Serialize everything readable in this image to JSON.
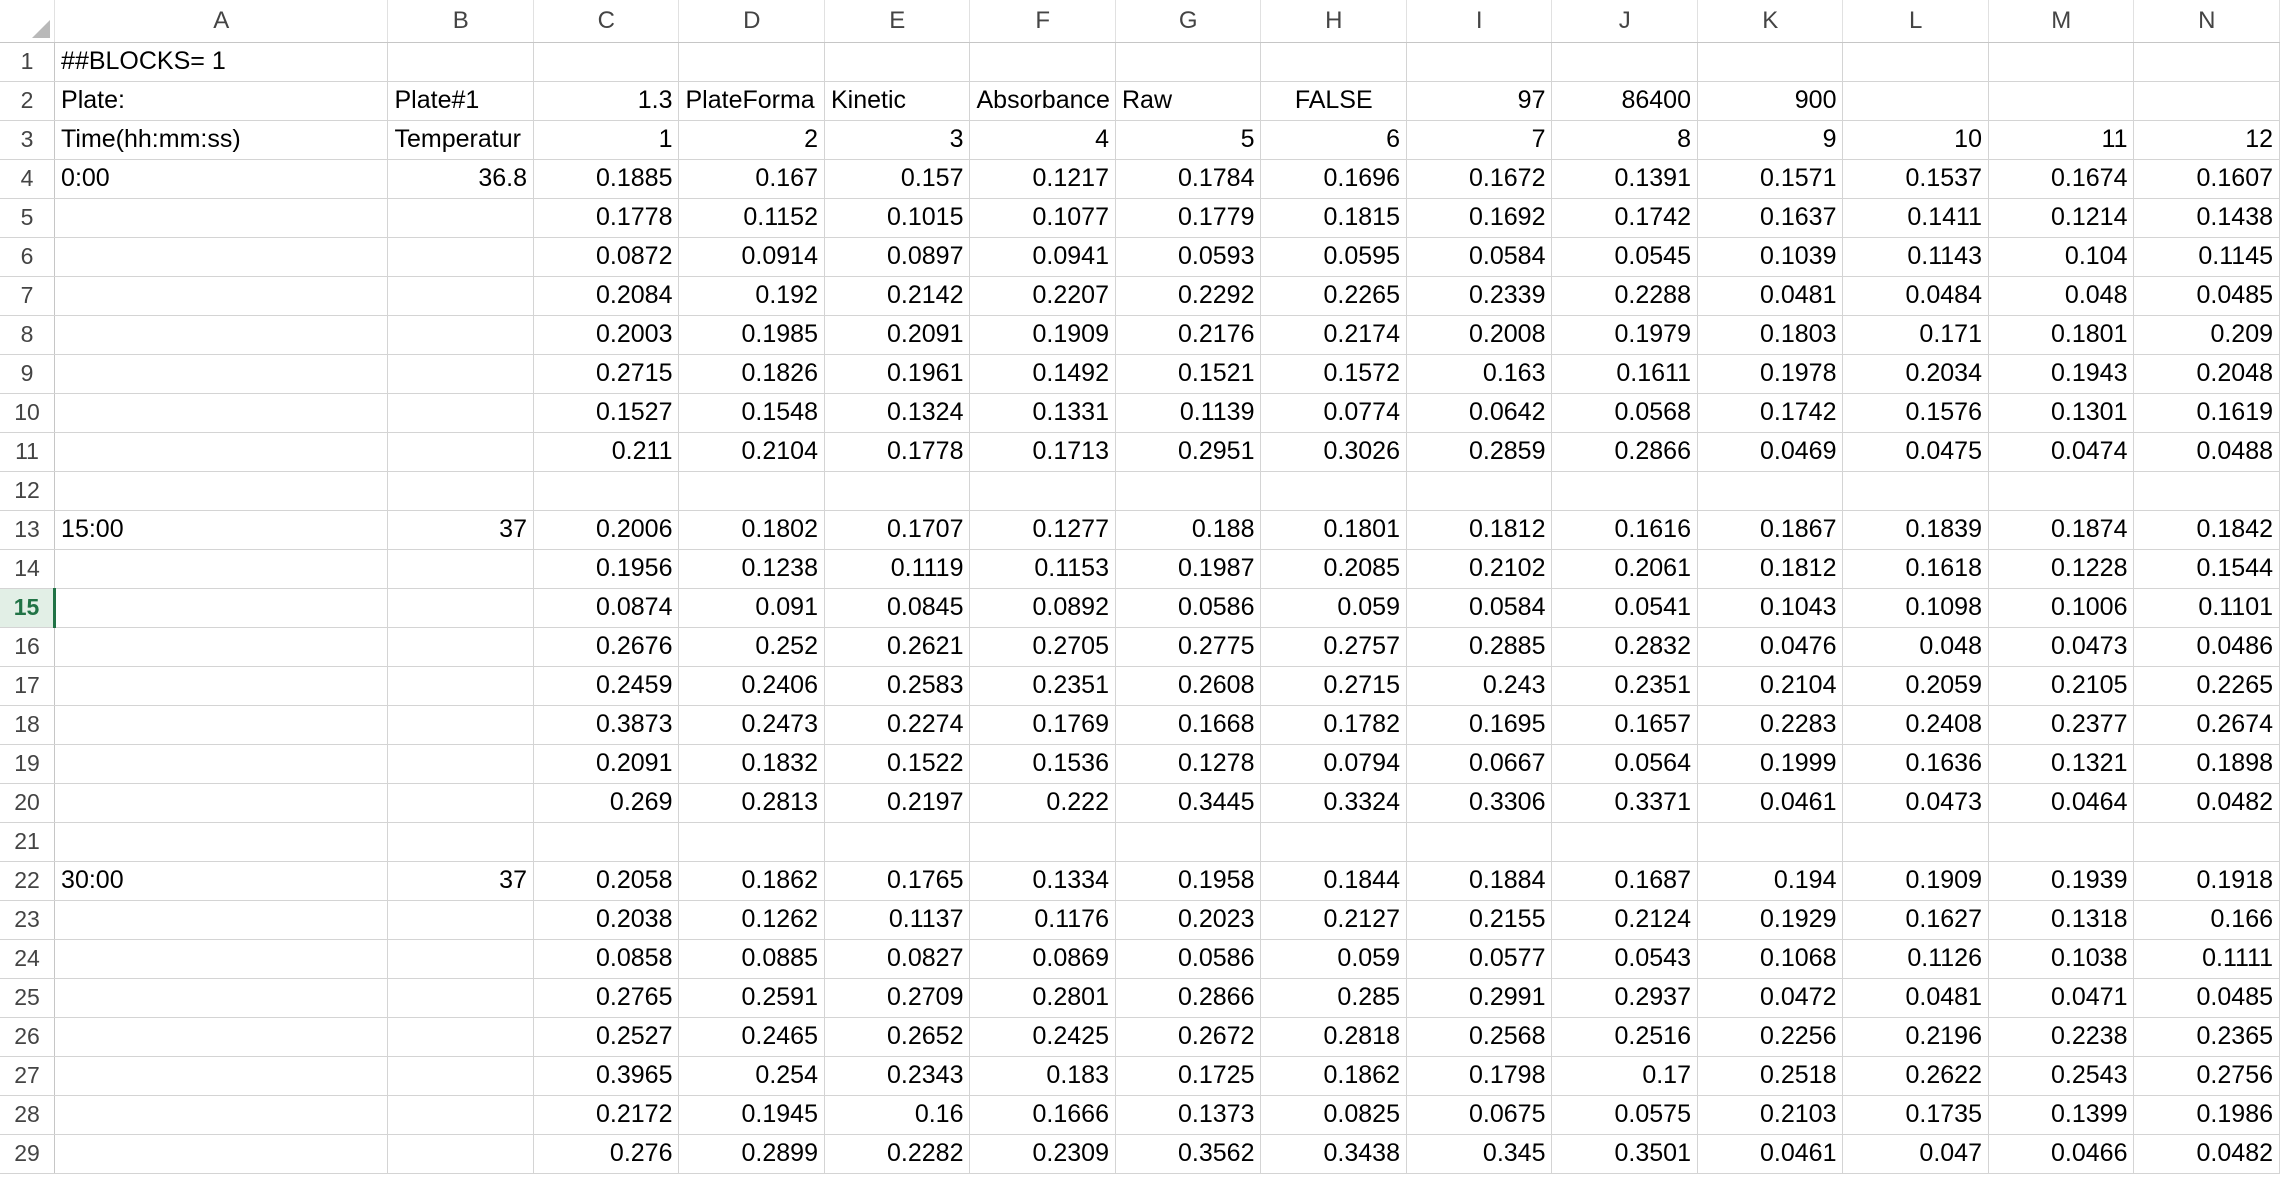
{
  "columns": [
    "A",
    "B",
    "C",
    "D",
    "E",
    "F",
    "G",
    "H",
    "I",
    "J",
    "K",
    "L",
    "M",
    "N"
  ],
  "active_row": 15,
  "rows": [
    {
      "n": "1",
      "cells": [
        "##BLOCKS= 1",
        "",
        "",
        "",
        "",
        "",
        "",
        "",
        "",
        "",
        "",
        "",
        "",
        ""
      ]
    },
    {
      "n": "2",
      "cells": [
        "Plate:",
        "Plate#1",
        "1.3",
        "PlateForma",
        "Kinetic",
        "Absorbance",
        "Raw",
        "FALSE",
        "97",
        "86400",
        "900",
        "",
        "",
        ""
      ]
    },
    {
      "n": "3",
      "cells": [
        "Time(hh:mm:ss)",
        "Temperatur",
        "1",
        "2",
        "3",
        "4",
        "5",
        "6",
        "7",
        "8",
        "9",
        "10",
        "11",
        "12"
      ]
    },
    {
      "n": "4",
      "cells": [
        "0:00",
        "36.8",
        "0.1885",
        "0.167",
        "0.157",
        "0.1217",
        "0.1784",
        "0.1696",
        "0.1672",
        "0.1391",
        "0.1571",
        "0.1537",
        "0.1674",
        "0.1607"
      ]
    },
    {
      "n": "5",
      "cells": [
        "",
        "",
        "0.1778",
        "0.1152",
        "0.1015",
        "0.1077",
        "0.1779",
        "0.1815",
        "0.1692",
        "0.1742",
        "0.1637",
        "0.1411",
        "0.1214",
        "0.1438"
      ]
    },
    {
      "n": "6",
      "cells": [
        "",
        "",
        "0.0872",
        "0.0914",
        "0.0897",
        "0.0941",
        "0.0593",
        "0.0595",
        "0.0584",
        "0.0545",
        "0.1039",
        "0.1143",
        "0.104",
        "0.1145"
      ]
    },
    {
      "n": "7",
      "cells": [
        "",
        "",
        "0.2084",
        "0.192",
        "0.2142",
        "0.2207",
        "0.2292",
        "0.2265",
        "0.2339",
        "0.2288",
        "0.0481",
        "0.0484",
        "0.048",
        "0.0485"
      ]
    },
    {
      "n": "8",
      "cells": [
        "",
        "",
        "0.2003",
        "0.1985",
        "0.2091",
        "0.1909",
        "0.2176",
        "0.2174",
        "0.2008",
        "0.1979",
        "0.1803",
        "0.171",
        "0.1801",
        "0.209"
      ]
    },
    {
      "n": "9",
      "cells": [
        "",
        "",
        "0.2715",
        "0.1826",
        "0.1961",
        "0.1492",
        "0.1521",
        "0.1572",
        "0.163",
        "0.1611",
        "0.1978",
        "0.2034",
        "0.1943",
        "0.2048"
      ]
    },
    {
      "n": "10",
      "cells": [
        "",
        "",
        "0.1527",
        "0.1548",
        "0.1324",
        "0.1331",
        "0.1139",
        "0.0774",
        "0.0642",
        "0.0568",
        "0.1742",
        "0.1576",
        "0.1301",
        "0.1619"
      ]
    },
    {
      "n": "11",
      "cells": [
        "",
        "",
        "0.211",
        "0.2104",
        "0.1778",
        "0.1713",
        "0.2951",
        "0.3026",
        "0.2859",
        "0.2866",
        "0.0469",
        "0.0475",
        "0.0474",
        "0.0488"
      ]
    },
    {
      "n": "12",
      "cells": [
        "",
        "",
        "",
        "",
        "",
        "",
        "",
        "",
        "",
        "",
        "",
        "",
        "",
        ""
      ]
    },
    {
      "n": "13",
      "cells": [
        "15:00",
        "37",
        "0.2006",
        "0.1802",
        "0.1707",
        "0.1277",
        "0.188",
        "0.1801",
        "0.1812",
        "0.1616",
        "0.1867",
        "0.1839",
        "0.1874",
        "0.1842"
      ]
    },
    {
      "n": "14",
      "cells": [
        "",
        "",
        "0.1956",
        "0.1238",
        "0.1119",
        "0.1153",
        "0.1987",
        "0.2085",
        "0.2102",
        "0.2061",
        "0.1812",
        "0.1618",
        "0.1228",
        "0.1544"
      ]
    },
    {
      "n": "15",
      "cells": [
        "",
        "",
        "0.0874",
        "0.091",
        "0.0845",
        "0.0892",
        "0.0586",
        "0.059",
        "0.0584",
        "0.0541",
        "0.1043",
        "0.1098",
        "0.1006",
        "0.1101"
      ]
    },
    {
      "n": "16",
      "cells": [
        "",
        "",
        "0.2676",
        "0.252",
        "0.2621",
        "0.2705",
        "0.2775",
        "0.2757",
        "0.2885",
        "0.2832",
        "0.0476",
        "0.048",
        "0.0473",
        "0.0486"
      ]
    },
    {
      "n": "17",
      "cells": [
        "",
        "",
        "0.2459",
        "0.2406",
        "0.2583",
        "0.2351",
        "0.2608",
        "0.2715",
        "0.243",
        "0.2351",
        "0.2104",
        "0.2059",
        "0.2105",
        "0.2265"
      ]
    },
    {
      "n": "18",
      "cells": [
        "",
        "",
        "0.3873",
        "0.2473",
        "0.2274",
        "0.1769",
        "0.1668",
        "0.1782",
        "0.1695",
        "0.1657",
        "0.2283",
        "0.2408",
        "0.2377",
        "0.2674"
      ]
    },
    {
      "n": "19",
      "cells": [
        "",
        "",
        "0.2091",
        "0.1832",
        "0.1522",
        "0.1536",
        "0.1278",
        "0.0794",
        "0.0667",
        "0.0564",
        "0.1999",
        "0.1636",
        "0.1321",
        "0.1898"
      ]
    },
    {
      "n": "20",
      "cells": [
        "",
        "",
        "0.269",
        "0.2813",
        "0.2197",
        "0.222",
        "0.3445",
        "0.3324",
        "0.3306",
        "0.3371",
        "0.0461",
        "0.0473",
        "0.0464",
        "0.0482"
      ]
    },
    {
      "n": "21",
      "cells": [
        "",
        "",
        "",
        "",
        "",
        "",
        "",
        "",
        "",
        "",
        "",
        "",
        "",
        ""
      ]
    },
    {
      "n": "22",
      "cells": [
        "30:00",
        "37",
        "0.2058",
        "0.1862",
        "0.1765",
        "0.1334",
        "0.1958",
        "0.1844",
        "0.1884",
        "0.1687",
        "0.194",
        "0.1909",
        "0.1939",
        "0.1918"
      ]
    },
    {
      "n": "23",
      "cells": [
        "",
        "",
        "0.2038",
        "0.1262",
        "0.1137",
        "0.1176",
        "0.2023",
        "0.2127",
        "0.2155",
        "0.2124",
        "0.1929",
        "0.1627",
        "0.1318",
        "0.166"
      ]
    },
    {
      "n": "24",
      "cells": [
        "",
        "",
        "0.0858",
        "0.0885",
        "0.0827",
        "0.0869",
        "0.0586",
        "0.059",
        "0.0577",
        "0.0543",
        "0.1068",
        "0.1126",
        "0.1038",
        "0.1111"
      ]
    },
    {
      "n": "25",
      "cells": [
        "",
        "",
        "0.2765",
        "0.2591",
        "0.2709",
        "0.2801",
        "0.2866",
        "0.285",
        "0.2991",
        "0.2937",
        "0.0472",
        "0.0481",
        "0.0471",
        "0.0485"
      ]
    },
    {
      "n": "26",
      "cells": [
        "",
        "",
        "0.2527",
        "0.2465",
        "0.2652",
        "0.2425",
        "0.2672",
        "0.2818",
        "0.2568",
        "0.2516",
        "0.2256",
        "0.2196",
        "0.2238",
        "0.2365"
      ]
    },
    {
      "n": "27",
      "cells": [
        "",
        "",
        "0.3965",
        "0.254",
        "0.2343",
        "0.183",
        "0.1725",
        "0.1862",
        "0.1798",
        "0.17",
        "0.2518",
        "0.2622",
        "0.2543",
        "0.2756"
      ]
    },
    {
      "n": "28",
      "cells": [
        "",
        "",
        "0.2172",
        "0.1945",
        "0.16",
        "0.1666",
        "0.1373",
        "0.0825",
        "0.0675",
        "0.0575",
        "0.2103",
        "0.1735",
        "0.1399",
        "0.1986"
      ]
    },
    {
      "n": "29",
      "cells": [
        "",
        "",
        "0.276",
        "0.2899",
        "0.2282",
        "0.2309",
        "0.3562",
        "0.3438",
        "0.345",
        "0.3501",
        "0.0461",
        "0.047",
        "0.0466",
        "0.0482"
      ]
    }
  ]
}
